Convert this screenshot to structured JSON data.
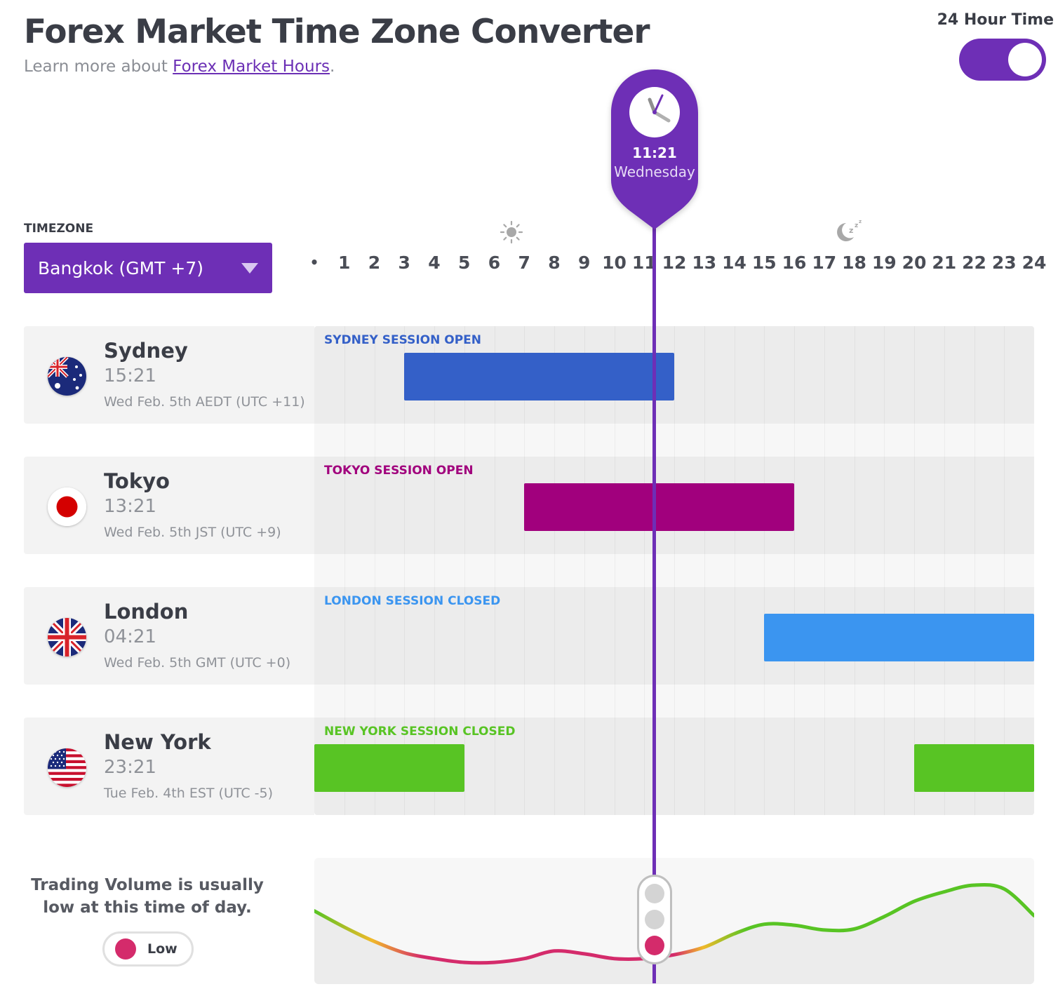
{
  "header": {
    "title": "Forex Market Time Zone Converter",
    "subtitle_prefix": "Learn more about ",
    "subtitle_link": "Forex Market Hours",
    "subtitle_suffix": "."
  },
  "toggle": {
    "label": "24 Hour Time",
    "on": true
  },
  "timezone": {
    "label": "TIMEZONE",
    "selected": "Bangkok (GMT +7)"
  },
  "hours": [
    "•",
    "1",
    "2",
    "3",
    "4",
    "5",
    "6",
    "7",
    "8",
    "9",
    "10",
    "11",
    "12",
    "13",
    "14",
    "15",
    "16",
    "17",
    "18",
    "19",
    "20",
    "21",
    "22",
    "23",
    "24"
  ],
  "icons": {
    "day": "sun-icon",
    "night": "moon-sleep-icon",
    "clock": "clock-icon"
  },
  "current": {
    "time": "11:21",
    "day": "Wednesday",
    "hour": 11.35
  },
  "cities": [
    {
      "name": "Sydney",
      "time": "15:21",
      "date": "Wed Feb. 5th AEDT (UTC +11)",
      "flag": "australia-flag",
      "session_label": "SYDNEY SESSION OPEN",
      "color": "#3460c8",
      "label_color": "#3460c8",
      "sessions": [
        [
          3,
          12
        ]
      ]
    },
    {
      "name": "Tokyo",
      "time": "13:21",
      "date": "Wed Feb. 5th JST (UTC +9)",
      "flag": "japan-flag",
      "session_label": "TOKYO SESSION OPEN",
      "color": "#a1007d",
      "label_color": "#a1007d",
      "sessions": [
        [
          7,
          16
        ]
      ]
    },
    {
      "name": "London",
      "time": "04:21",
      "date": "Wed Feb. 5th GMT (UTC +0)",
      "flag": "uk-flag",
      "session_label": "LONDON SESSION CLOSED",
      "color": "#3b95f0",
      "label_color": "#3b95f0",
      "sessions": [
        [
          15,
          24
        ]
      ]
    },
    {
      "name": "New York",
      "time": "23:21",
      "date": "Tue Feb. 4th EST (UTC -5)",
      "flag": "usa-flag",
      "session_label": "NEW YORK SESSION CLOSED",
      "color": "#58c424",
      "label_color": "#58c424",
      "sessions": [
        [
          0,
          5
        ],
        [
          20,
          24
        ]
      ]
    }
  ],
  "volume": {
    "message": "Trading Volume is usually low at this time of day.",
    "level": "Low",
    "level_color": "#d42b6b",
    "curve": [
      [
        0,
        0.62
      ],
      [
        1,
        0.45
      ],
      [
        2,
        0.3
      ],
      [
        3,
        0.18
      ],
      [
        4,
        0.12
      ],
      [
        5,
        0.08
      ],
      [
        6,
        0.08
      ],
      [
        7,
        0.12
      ],
      [
        8,
        0.2
      ],
      [
        9,
        0.17
      ],
      [
        10,
        0.12
      ],
      [
        11,
        0.12
      ],
      [
        12,
        0.16
      ],
      [
        13,
        0.24
      ],
      [
        14,
        0.38
      ],
      [
        15,
        0.48
      ],
      [
        16,
        0.47
      ],
      [
        17,
        0.42
      ],
      [
        18,
        0.43
      ],
      [
        19,
        0.56
      ],
      [
        20,
        0.72
      ],
      [
        21,
        0.82
      ],
      [
        22,
        0.89
      ],
      [
        23,
        0.85
      ],
      [
        24,
        0.57
      ]
    ]
  }
}
